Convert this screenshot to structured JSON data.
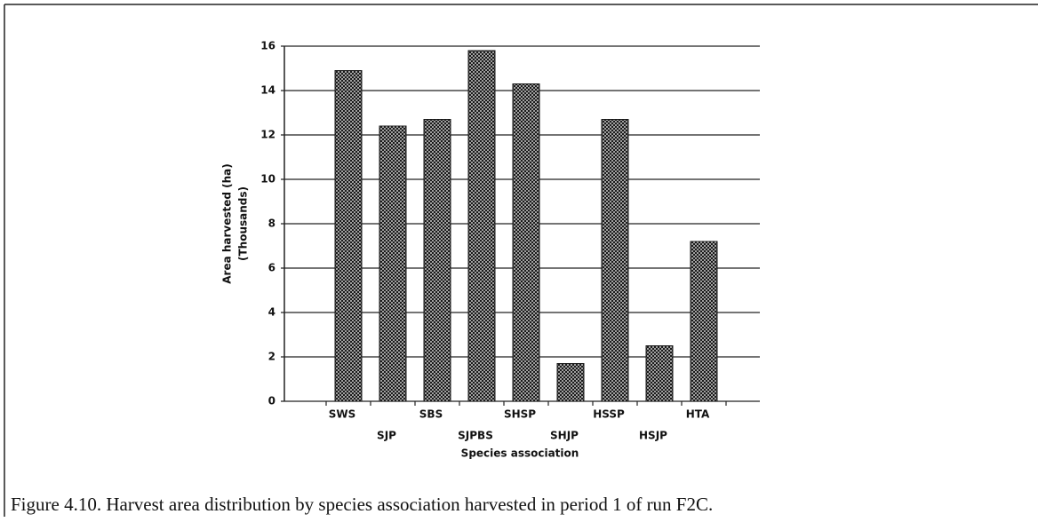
{
  "chart_data": {
    "type": "bar",
    "categories": [
      "SWS",
      "SJP",
      "SBS",
      "SJPBS",
      "SHSP",
      "SHJP",
      "HSSP",
      "HSJP",
      "HTA"
    ],
    "values": [
      14.9,
      12.4,
      12.7,
      15.8,
      14.3,
      1.7,
      12.7,
      2.5,
      7.2
    ],
    "color": "#1a1a1a",
    "ylim": [
      0,
      16
    ],
    "yticks": [
      0,
      2,
      4,
      6,
      8,
      10,
      12,
      14,
      16
    ],
    "grid": true,
    "ylabel": [
      "Area harvested (ha)",
      "(Thousands)"
    ],
    "xlabel": "Species association",
    "caption": "Figure 4.10.  Harvest area distribution by species association harvested in period 1 of run F2C."
  }
}
